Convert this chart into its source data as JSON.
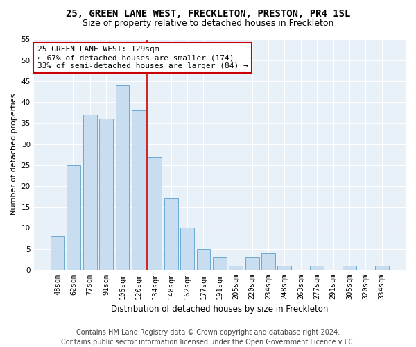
{
  "title1": "25, GREEN LANE WEST, FRECKLETON, PRESTON, PR4 1SL",
  "title2": "Size of property relative to detached houses in Freckleton",
  "xlabel": "Distribution of detached houses by size in Freckleton",
  "ylabel": "Number of detached properties",
  "categories": [
    "48sqm",
    "62sqm",
    "77sqm",
    "91sqm",
    "105sqm",
    "120sqm",
    "134sqm",
    "148sqm",
    "162sqm",
    "177sqm",
    "191sqm",
    "205sqm",
    "220sqm",
    "234sqm",
    "248sqm",
    "263sqm",
    "277sqm",
    "291sqm",
    "305sqm",
    "320sqm",
    "334sqm"
  ],
  "values": [
    8,
    25,
    37,
    36,
    44,
    38,
    27,
    17,
    10,
    5,
    3,
    1,
    3,
    4,
    1,
    0,
    1,
    0,
    1,
    0,
    1
  ],
  "bar_color": "#c9ddf0",
  "bar_edge_color": "#6aaad4",
  "annotation_title": "25 GREEN LANE WEST: 129sqm",
  "annotation_line1": "← 67% of detached houses are smaller (174)",
  "annotation_line2": "33% of semi-detached houses are larger (84) →",
  "annotation_box_facecolor": "#ffffff",
  "annotation_box_edgecolor": "#cc0000",
  "vline_color": "#cc0000",
  "vline_x": 5.5,
  "ylim": [
    0,
    55
  ],
  "yticks": [
    0,
    5,
    10,
    15,
    20,
    25,
    30,
    35,
    40,
    45,
    50,
    55
  ],
  "footnote1": "Contains HM Land Registry data © Crown copyright and database right 2024.",
  "footnote2": "Contains public sector information licensed under the Open Government Licence v3.0.",
  "fig_facecolor": "#ffffff",
  "plot_facecolor": "#e8f0f8",
  "title1_fontsize": 10,
  "title2_fontsize": 9,
  "xlabel_fontsize": 8.5,
  "ylabel_fontsize": 8,
  "tick_fontsize": 7.5,
  "annotation_fontsize": 8,
  "footnote_fontsize": 7
}
